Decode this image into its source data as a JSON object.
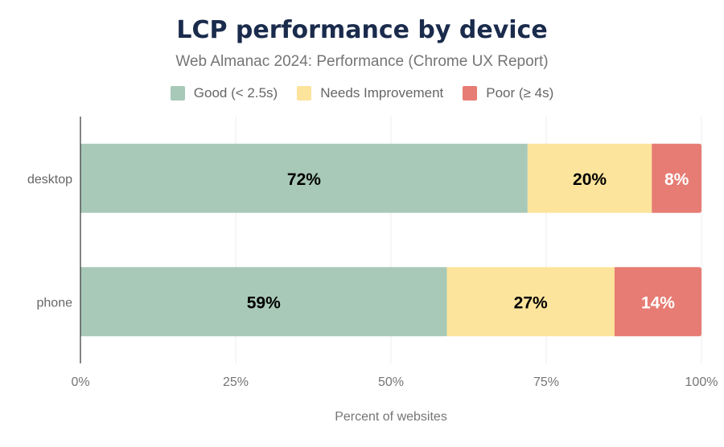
{
  "chart_data": {
    "type": "bar",
    "orientation": "horizontal",
    "stacked": true,
    "title": "LCP performance by device",
    "subtitle": "Web Almanac 2024: Performance (Chrome UX Report)",
    "xlabel": "Percent of websites",
    "ylabel": "",
    "xlim": [
      0,
      100
    ],
    "xticks": [
      "0%",
      "25%",
      "50%",
      "75%",
      "100%"
    ],
    "grid": true,
    "legend_position": "top",
    "categories": [
      "desktop",
      "phone"
    ],
    "series": [
      {
        "name": "Good (< 2.5s)",
        "color": "#a8c9b8",
        "values": [
          72,
          59
        ],
        "labels": [
          "72%",
          "59%"
        ],
        "label_color": "#000000"
      },
      {
        "name": "Needs Improvement",
        "color": "#fde49c",
        "values": [
          20,
          27
        ],
        "labels": [
          "20%",
          "27%"
        ],
        "label_color": "#000000"
      },
      {
        "name": "Poor (≥ 4s)",
        "color": "#e67c73",
        "values": [
          8,
          14
        ],
        "labels": [
          "8%",
          "14%"
        ],
        "label_color": "#ffffff"
      }
    ]
  }
}
